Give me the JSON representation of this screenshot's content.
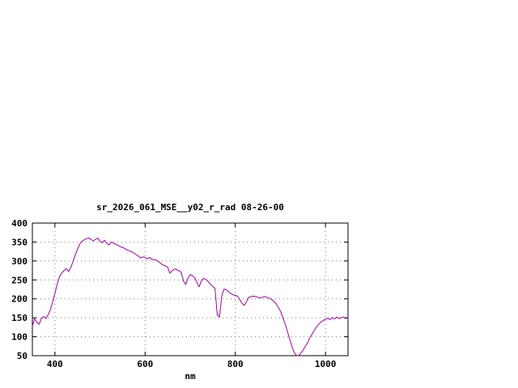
{
  "window": {
    "background_color": "#ffffff"
  },
  "chart_data": {
    "type": "line",
    "title": "sr_2026_061_MSE__y02_r_rad 08-26-00",
    "xlabel": "nm",
    "ylabel": "",
    "xlim": [
      350,
      1050
    ],
    "ylim": [
      50,
      400
    ],
    "xticks": [
      400,
      600,
      800,
      1000
    ],
    "yticks": [
      50,
      100,
      150,
      200,
      250,
      300,
      350,
      400
    ],
    "grid": true,
    "legend": "none",
    "line_color": "#a000a0",
    "x": [
      350,
      355,
      360,
      365,
      370,
      375,
      380,
      385,
      390,
      395,
      400,
      405,
      410,
      415,
      420,
      425,
      430,
      435,
      440,
      445,
      450,
      455,
      460,
      465,
      470,
      475,
      480,
      485,
      490,
      495,
      500,
      505,
      510,
      515,
      520,
      525,
      530,
      535,
      540,
      545,
      550,
      555,
      560,
      565,
      570,
      575,
      580,
      585,
      590,
      595,
      600,
      605,
      610,
      615,
      620,
      625,
      630,
      635,
      640,
      645,
      650,
      655,
      660,
      665,
      670,
      675,
      680,
      685,
      690,
      695,
      700,
      705,
      710,
      715,
      720,
      725,
      730,
      735,
      740,
      745,
      750,
      755,
      760,
      765,
      770,
      775,
      780,
      785,
      790,
      795,
      800,
      805,
      810,
      815,
      820,
      825,
      830,
      835,
      840,
      845,
      850,
      855,
      860,
      865,
      870,
      875,
      880,
      885,
      890,
      895,
      900,
      905,
      910,
      915,
      920,
      925,
      930,
      935,
      940,
      945,
      950,
      955,
      960,
      965,
      970,
      975,
      980,
      985,
      990,
      995,
      1000,
      1005,
      1010,
      1015,
      1020,
      1025,
      1030,
      1035,
      1040,
      1045,
      1050
    ],
    "values": [
      128,
      148,
      138,
      133,
      148,
      153,
      148,
      158,
      172,
      192,
      215,
      238,
      258,
      268,
      274,
      280,
      272,
      282,
      298,
      315,
      330,
      345,
      352,
      356,
      359,
      361,
      357,
      353,
      357,
      360,
      352,
      348,
      355,
      347,
      342,
      350,
      347,
      344,
      341,
      338,
      336,
      333,
      329,
      327,
      324,
      321,
      317,
      313,
      308,
      311,
      309,
      306,
      309,
      304,
      304,
      302,
      298,
      293,
      289,
      287,
      284,
      268,
      274,
      279,
      277,
      274,
      270,
      248,
      238,
      254,
      264,
      261,
      256,
      243,
      232,
      248,
      254,
      251,
      246,
      238,
      233,
      228,
      158,
      152,
      208,
      226,
      224,
      219,
      214,
      211,
      209,
      207,
      198,
      188,
      183,
      193,
      204,
      206,
      207,
      206,
      204,
      202,
      204,
      206,
      204,
      202,
      199,
      194,
      188,
      178,
      168,
      152,
      136,
      116,
      96,
      76,
      60,
      51,
      50,
      56,
      64,
      74,
      84,
      96,
      106,
      116,
      126,
      133,
      139,
      143,
      146,
      149,
      145,
      151,
      147,
      152,
      148,
      150,
      152,
      148,
      151
    ]
  }
}
